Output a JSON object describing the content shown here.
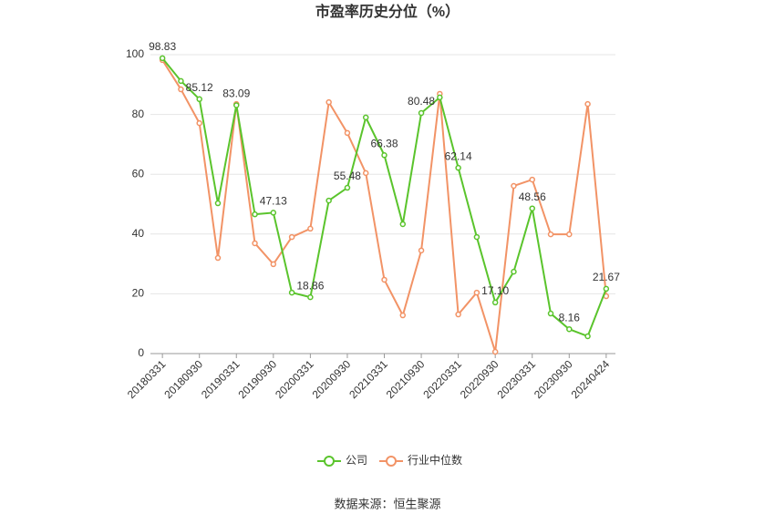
{
  "chart_data": {
    "type": "line",
    "title": "市盈率历史分位（%）",
    "categories": [
      "20180331",
      null,
      "20180930",
      null,
      "20190331",
      null,
      "20190930",
      null,
      "20200331",
      null,
      "20200930",
      null,
      "20210331",
      null,
      "20210930",
      null,
      "20220331",
      null,
      "20220930",
      null,
      "20230331",
      null,
      "20230930",
      null,
      "20240424"
    ],
    "series": [
      {
        "name": "公司",
        "color": "#5ac42c",
        "values": [
          98.83,
          91.2,
          85.12,
          50.3,
          83.09,
          46.6,
          47.13,
          20.4,
          18.86,
          51.2,
          55.48,
          79.0,
          66.38,
          43.3,
          80.48,
          85.7,
          62.14,
          39.0,
          17.1,
          27.4,
          48.56,
          13.4,
          8.16,
          5.8,
          21.67
        ],
        "value_labels": [
          "98.83",
          null,
          "85.12",
          null,
          "83.09",
          null,
          "47.13",
          null,
          "18.86",
          null,
          "55.48",
          null,
          "66.38",
          null,
          "80.48",
          null,
          "62.14",
          null,
          "17.10",
          null,
          "48.56",
          null,
          "8.16",
          null,
          "21.67"
        ]
      },
      {
        "name": "行业中位数",
        "color": "#f29366",
        "values": [
          98.2,
          88.4,
          77.1,
          32.0,
          83.5,
          36.9,
          29.9,
          39.0,
          41.8,
          84.1,
          73.8,
          60.4,
          24.7,
          12.8,
          34.5,
          86.9,
          13.1,
          20.4,
          0.6,
          56.1,
          58.2,
          39.9,
          39.9,
          83.5,
          19.2
        ]
      }
    ],
    "ylim": [
      0,
      100
    ],
    "yticks": [
      0,
      20,
      40,
      60,
      80,
      100
    ],
    "grid": true,
    "source": "数据来源：恒生聚源"
  }
}
